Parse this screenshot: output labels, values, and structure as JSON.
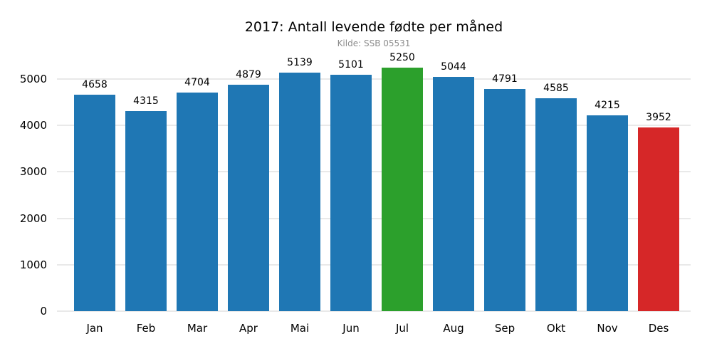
{
  "chart_data": {
    "type": "bar",
    "title": "2017: Antall levende fødte per måned",
    "subtitle": "Kilde: SSB 05531",
    "categories": [
      "Jan",
      "Feb",
      "Mar",
      "Apr",
      "Mai",
      "Jun",
      "Jul",
      "Aug",
      "Sep",
      "Okt",
      "Nov",
      "Des"
    ],
    "values": [
      4658,
      4315,
      4704,
      4879,
      5139,
      5101,
      5250,
      5044,
      4791,
      4585,
      4215,
      3952
    ],
    "bar_colors": [
      "#1f77b4",
      "#1f77b4",
      "#1f77b4",
      "#1f77b4",
      "#1f77b4",
      "#1f77b4",
      "#2ca02c",
      "#1f77b4",
      "#1f77b4",
      "#1f77b4",
      "#1f77b4",
      "#d62728"
    ],
    "highlight": {
      "max_month": "Jul",
      "max_color": "#2ca02c",
      "min_month": "Des",
      "min_color": "#d62728"
    },
    "value_labels": true,
    "xlabel": "",
    "ylabel": "",
    "yticks": [
      0,
      1000,
      2000,
      3000,
      4000,
      5000
    ],
    "ylim": [
      0,
      5400
    ],
    "grid": "horizontal-only",
    "legend": "none",
    "colors": {
      "default_bar": "#1f77b4",
      "max_bar": "#2ca02c",
      "min_bar": "#d62728",
      "gridline": "#e9e9e9",
      "title_text": "#000000",
      "subtitle_text": "#8c8c8c",
      "tick_text": "#000000",
      "background": "#ffffff"
    }
  }
}
